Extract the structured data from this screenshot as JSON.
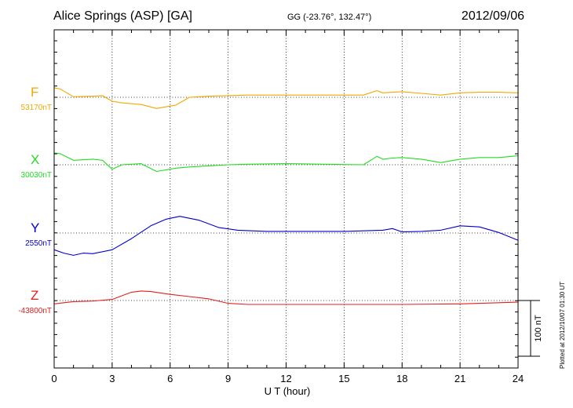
{
  "header": {
    "title": "Alice Springs (ASP)  [GA]",
    "coords": "GG (-23.76°, 132.47°)",
    "date": "2012/09/06"
  },
  "footer": {
    "plotted": "Plotted at 2012/10/07 01:30 UT"
  },
  "chart_data": {
    "type": "line",
    "xlabel": "U T (hour)",
    "xlim": [
      0,
      24
    ],
    "xticks": [
      "0",
      "3",
      "6",
      "9",
      "12",
      "15",
      "18",
      "21",
      "24"
    ],
    "grid": true,
    "scale_bar_label": "100 nT",
    "scale_nT": 100,
    "series": [
      {
        "name": "F",
        "baseline_label": "53170nT",
        "baseline_nT": 53170,
        "color": "#f2a800",
        "x": [
          0,
          0.3,
          1.0,
          2.0,
          2.5,
          3.0,
          3.5,
          4.5,
          5.3,
          6.3,
          7.0,
          8.0,
          9.0,
          10.0,
          12.0,
          14.0,
          16.0,
          16.7,
          17.0,
          18.0,
          19.0,
          20.0,
          21.0,
          22.0,
          23.0,
          24.0
        ],
        "y": [
          53187,
          53185,
          53171,
          53172,
          53173,
          53163,
          53160,
          53157,
          53150,
          53156,
          53170,
          53172,
          53173,
          53174,
          53174,
          53174,
          53174,
          53182,
          53178,
          53180,
          53177,
          53174,
          53178,
          53179,
          53179,
          53178
        ]
      },
      {
        "name": "X",
        "baseline_label": "30030nT",
        "baseline_nT": 30030,
        "color": "#22dd22",
        "x": [
          0,
          0.3,
          1.0,
          2.0,
          2.5,
          3.0,
          3.5,
          4.5,
          5.3,
          6.3,
          7.0,
          8.0,
          9.0,
          10.0,
          12.0,
          14.0,
          16.0,
          16.7,
          17.0,
          17.5,
          18.0,
          19.0,
          20.0,
          21.0,
          22.0,
          23.0,
          24.0
        ],
        "y": [
          30051,
          30050,
          30038,
          30040,
          30038,
          30022,
          30030,
          30032,
          30018,
          30024,
          30026,
          30028,
          30030,
          30031,
          30032,
          30031,
          30030,
          30045,
          30040,
          30042,
          30043,
          30040,
          30034,
          30040,
          30043,
          30043,
          30046
        ]
      },
      {
        "name": "Y",
        "baseline_label": "2550nT",
        "baseline_nT": 2550,
        "color": "#0000cc",
        "x": [
          0,
          0.5,
          1.0,
          1.5,
          2.0,
          3.0,
          4.0,
          5.0,
          5.8,
          6.5,
          7.5,
          8.5,
          9.5,
          11.0,
          13.0,
          15.0,
          17.0,
          17.5,
          18.0,
          19.0,
          20.0,
          21.0,
          22.0,
          23.0,
          24.0
        ],
        "y": [
          2520,
          2514,
          2510,
          2514,
          2513,
          2520,
          2540,
          2563,
          2575,
          2580,
          2573,
          2560,
          2555,
          2553,
          2553,
          2553,
          2555,
          2558,
          2552,
          2553,
          2555,
          2563,
          2561,
          2551,
          2537
        ]
      },
      {
        "name": "Z",
        "baseline_label": "-43800nT",
        "baseline_nT": -43800,
        "color": "#e02020",
        "x": [
          0,
          0.5,
          1.0,
          2.0,
          3.0,
          4.0,
          4.5,
          5.0,
          6.0,
          7.0,
          8.0,
          9.0,
          10.0,
          12.0,
          15.0,
          18.0,
          21.0,
          24.0
        ],
        "y": [
          -43806,
          -43804,
          -43802,
          -43801,
          -43798,
          -43785,
          -43783,
          -43784,
          -43789,
          -43793,
          -43797,
          -43805,
          -43807,
          -43807,
          -43807,
          -43807,
          -43806,
          -43803
        ]
      }
    ]
  }
}
